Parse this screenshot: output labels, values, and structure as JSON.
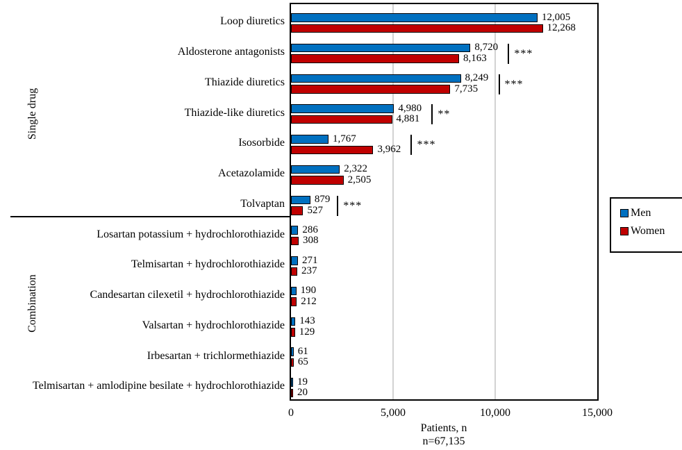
{
  "chart_data": {
    "type": "bar",
    "orientation": "horizontal",
    "xlabel": "Patients, n",
    "note": "n=67,135",
    "xlim": [
      0,
      15000
    ],
    "x_ticks": [
      0,
      5000,
      10000,
      15000
    ],
    "x_tick_labels": [
      "0",
      "5,000",
      "10,000",
      "15,000"
    ],
    "grid": "vertical gridlines at 5,000 and 10,000",
    "legend_position": "right",
    "groups": [
      {
        "label": "Single drug",
        "count": 7
      },
      {
        "label": "Combination",
        "count": 6
      }
    ],
    "categories": [
      "Loop diuretics",
      "Aldosterone antagonists",
      "Thiazide diuretics",
      "Thiazide-like diuretics",
      "Isosorbide",
      "Acetazolamide",
      "Tolvaptan",
      "Losartan potassium + hydrochlorothiazide",
      "Telmisartan + hydrochlorothiazide",
      "Candesartan cilexetil + hydrochlorothiazide",
      "Valsartan + hydrochlorothiazide",
      "Irbesartan + trichlormethiazide",
      "Telmisartan + amlodipine besilate + hydrochlorothiazide"
    ],
    "series": [
      {
        "name": "Men",
        "color": "#0070c0",
        "values": [
          12005,
          8720,
          8249,
          4980,
          1767,
          2322,
          879,
          286,
          271,
          190,
          143,
          61,
          19
        ],
        "labels": [
          "12,005",
          "8,720",
          "8,249",
          "4,980",
          "1,767",
          "2,322",
          "879",
          "286",
          "271",
          "190",
          "143",
          "61",
          "19"
        ]
      },
      {
        "name": "Women",
        "color": "#c00000",
        "values": [
          12268,
          8163,
          7735,
          4881,
          3962,
          2505,
          527,
          308,
          237,
          212,
          129,
          65,
          20
        ],
        "labels": [
          "12,268",
          "8,163",
          "7,735",
          "4,881",
          "3,962",
          "2,505",
          "527",
          "308",
          "237",
          "212",
          "129",
          "65",
          "20"
        ]
      }
    ],
    "significance": [
      "",
      "***",
      "***",
      "**",
      "***",
      "",
      "***",
      "",
      "",
      "",
      "",
      "",
      ""
    ]
  },
  "legend": {
    "items": [
      {
        "label": "Men",
        "color": "#0070c0"
      },
      {
        "label": "Women",
        "color": "#c00000"
      }
    ]
  }
}
